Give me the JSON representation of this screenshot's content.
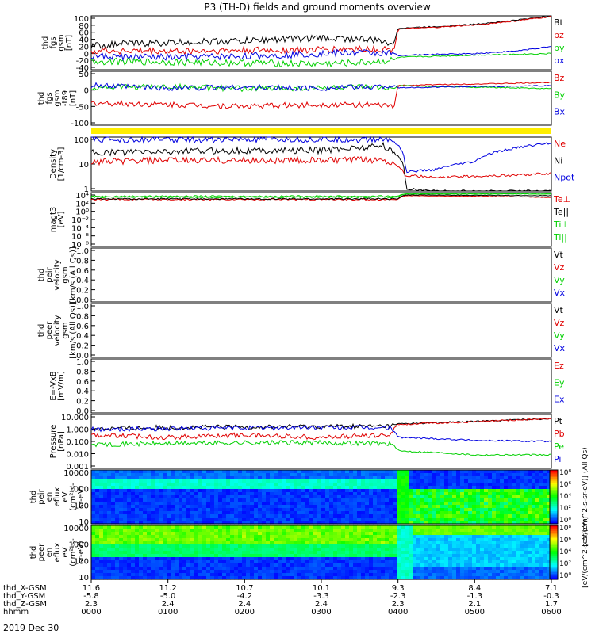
{
  "title": "P3 (TH-D) fields and ground moments overview",
  "colors": {
    "black": "#000000",
    "red": "#e00000",
    "green": "#00d000",
    "blue": "#0000e0",
    "yellow": "#ffee00"
  },
  "panels": [
    {
      "key": "fgs",
      "ylabel": [
        "thd",
        "fgs",
        "gsm",
        "[nT]"
      ],
      "yticks": [
        "100",
        "80",
        "60",
        "40",
        "20",
        "0",
        "-20",
        "-40"
      ],
      "legend": [
        {
          "text": "Bt",
          "color": "black"
        },
        {
          "text": "bz",
          "color": "red"
        },
        {
          "text": "by",
          "color": "green"
        },
        {
          "text": "bx",
          "color": "blue"
        }
      ]
    },
    {
      "key": "fgs_t89",
      "ylabel": [
        "thd",
        "fgs",
        "gsm",
        "-t89",
        "[nT]"
      ],
      "yticks": [
        "50",
        "0",
        "-50",
        "-100"
      ],
      "legend": [
        {
          "text": "Bz",
          "color": "red"
        },
        {
          "text": "By",
          "color": "green"
        },
        {
          "text": "Bx",
          "color": "blue"
        }
      ]
    },
    {
      "key": "density",
      "ylabel": [
        "Density",
        "[1/cm-3]"
      ],
      "yticks": [
        "100",
        "10",
        "1"
      ],
      "legend": [
        {
          "text": "Ne",
          "color": "red"
        },
        {
          "text": "Ni",
          "color": "black"
        },
        {
          "text": "Npot",
          "color": "blue"
        }
      ]
    },
    {
      "key": "temp",
      "ylabel": [
        "magt3",
        "[eV]"
      ],
      "yticks": [
        "10⁴",
        "10²",
        "10⁰",
        "10⁻²",
        "10⁻⁴",
        "10⁻⁶",
        "10⁻⁸"
      ],
      "legend": [
        {
          "text": "Te⊥",
          "color": "red"
        },
        {
          "text": "Te||",
          "color": "black"
        },
        {
          "text": "Ti⊥",
          "color": "green"
        },
        {
          "text": "Ti||",
          "color": "green"
        }
      ]
    },
    {
      "key": "peir_vel",
      "ylabel": [
        "thd",
        "peir",
        "velocity",
        "gsm",
        "[km/s (All Qs)]"
      ],
      "yticks": [
        "1.0",
        "0.8",
        "0.6",
        "0.4",
        "0.2",
        "0.0"
      ],
      "legend": [
        {
          "text": "Vt",
          "color": "black"
        },
        {
          "text": "Vz",
          "color": "red"
        },
        {
          "text": "Vy",
          "color": "green"
        },
        {
          "text": "Vx",
          "color": "blue"
        }
      ]
    },
    {
      "key": "peer_vel",
      "ylabel": [
        "thd",
        "peer",
        "velocity",
        "gsm",
        "[km/s (All Qs)]"
      ],
      "yticks": [
        "1.0",
        "0.8",
        "0.6",
        "0.4",
        "0.2",
        "0.0"
      ],
      "legend": [
        {
          "text": "Vt",
          "color": "black"
        },
        {
          "text": "Vz",
          "color": "red"
        },
        {
          "text": "Vy",
          "color": "green"
        },
        {
          "text": "Vx",
          "color": "blue"
        }
      ]
    },
    {
      "key": "efield",
      "ylabel": [
        "E=-VxB",
        "[mV/m]"
      ],
      "yticks": [
        "1.0",
        "0.8",
        "0.6",
        "0.4",
        "0.2",
        "0.0"
      ],
      "legend": [
        {
          "text": "Ez",
          "color": "red"
        },
        {
          "text": "Ey",
          "color": "green"
        },
        {
          "text": "Ex",
          "color": "blue"
        }
      ]
    },
    {
      "key": "pressure",
      "ylabel": [
        "Pressure",
        "[nPa]"
      ],
      "yticks": [
        "10.000",
        "1.000",
        "0.100",
        "0.010",
        "0.001"
      ],
      "legend": [
        {
          "text": "Pt",
          "color": "black"
        },
        {
          "text": "Pb",
          "color": "red"
        },
        {
          "text": "Pe",
          "color": "green"
        },
        {
          "text": "Pi",
          "color": "blue"
        }
      ]
    },
    {
      "key": "peir_spec",
      "ylabel": [
        "thd",
        "peir",
        "en",
        "eflux",
        "eV",
        "(cm²-s-",
        "sr-eV)"
      ],
      "yticks": [
        "10000",
        "1000",
        "100",
        "10"
      ],
      "colorbar": [
        "10⁸",
        "10⁶",
        "10⁴",
        "10²",
        "10⁰"
      ],
      "cbar_label": "[eV/(cm^2-s-sr-eV)] (All Qs)"
    },
    {
      "key": "peer_spec",
      "ylabel": [
        "thd",
        "peer",
        "en",
        "eflux",
        "eV",
        "(cm²-s-",
        "sr-eV)"
      ],
      "yticks": [
        "10000",
        "1000",
        "100",
        "10"
      ],
      "colorbar": [
        "10⁸",
        "10⁶",
        "10⁴",
        "10²",
        "10⁰"
      ],
      "cbar_label": "[eV/(cm^2-s-sr-eV)]"
    }
  ],
  "xaxis": {
    "rows": [
      {
        "label": "thd_X-GSM",
        "values": [
          "11.6",
          "11.2",
          "10.7",
          "10.1",
          "9.3",
          "8.4",
          "7.1"
        ]
      },
      {
        "label": "thd_Y-GSM",
        "values": [
          "-5.8",
          "-5.0",
          "-4.2",
          "-3.3",
          "-2.3",
          "-1.3",
          "-0.3"
        ]
      },
      {
        "label": "thd_Z-GSM",
        "values": [
          "2.3",
          "2.4",
          "2.4",
          "2.4",
          "2.3",
          "2.1",
          "1.7"
        ]
      },
      {
        "label": "hhmm",
        "values": [
          "0000",
          "0100",
          "0200",
          "0300",
          "0400",
          "0500",
          "0600"
        ]
      }
    ],
    "date": "2019 Dec 30"
  },
  "chart_data": {
    "type": "line",
    "title": "P3 (TH-D) fields and ground moments overview",
    "date": "2019 Dec 30",
    "x_hours": [
      0,
      1,
      2,
      3,
      4,
      5,
      6
    ],
    "x_tick_labels": [
      "0000",
      "0100",
      "0200",
      "0300",
      "0400",
      "0500",
      "0600"
    ],
    "series": [
      {
        "panel": "fgs",
        "name": "Bt",
        "color": "black",
        "t": [
          0,
          0.5,
          1,
          1.5,
          2,
          2.5,
          3,
          3.5,
          3.95,
          4.0,
          4.5,
          5,
          5.5,
          6
        ],
        "v": [
          22,
          28,
          30,
          33,
          35,
          40,
          42,
          40,
          30,
          68,
          72,
          78,
          88,
          100
        ]
      },
      {
        "panel": "fgs",
        "name": "bz",
        "color": "red",
        "t": [
          0,
          1,
          2,
          3,
          3.5,
          3.95,
          4.0,
          4.5,
          5,
          5.5,
          6
        ],
        "v": [
          10,
          8,
          10,
          12,
          15,
          12,
          66,
          70,
          76,
          86,
          98
        ]
      },
      {
        "panel": "fgs",
        "name": "by",
        "color": "green",
        "t": [
          0,
          1,
          2,
          3,
          3.5,
          3.95,
          4.0,
          4.5,
          5,
          5.5,
          6
        ],
        "v": [
          -18,
          -20,
          -22,
          -25,
          -22,
          -15,
          -8,
          -5,
          -2,
          0,
          2
        ]
      },
      {
        "panel": "fgs",
        "name": "bx",
        "color": "blue",
        "t": [
          0,
          1,
          2,
          3,
          3.5,
          3.95,
          4.0,
          4.5,
          5,
          5.5,
          6
        ],
        "v": [
          -5,
          -8,
          -5,
          2,
          5,
          2,
          -3,
          0,
          2,
          8,
          20
        ]
      },
      {
        "panel": "fgs_t89",
        "name": "Bz",
        "color": "red",
        "t": [
          0,
          1,
          2,
          3,
          3.5,
          3.95,
          4.0,
          4.5,
          5,
          5.5,
          6
        ],
        "v": [
          -50,
          -55,
          -60,
          -55,
          -55,
          -60,
          5,
          8,
          10,
          12,
          15
        ]
      },
      {
        "panel": "fgs_t89",
        "name": "By",
        "color": "green",
        "t": [
          0,
          1,
          2,
          3,
          3.5,
          3.95,
          4.0,
          4.5,
          5,
          5.5,
          6
        ],
        "v": [
          0,
          2,
          -5,
          -2,
          0,
          -5,
          5,
          2,
          0,
          -2,
          -5
        ]
      },
      {
        "panel": "fgs_t89",
        "name": "Bx",
        "color": "blue",
        "t": [
          0,
          1,
          2,
          3,
          3.5,
          3.95,
          4.0,
          4.5,
          5,
          5.5,
          6
        ],
        "v": [
          5,
          -2,
          0,
          -3,
          0,
          5,
          -2,
          0,
          2,
          3,
          5
        ]
      },
      {
        "panel": "density",
        "name": "Ne",
        "color": "red",
        "t": [
          0,
          1,
          2,
          3,
          3.8,
          3.95,
          4.1,
          4.5,
          5,
          5.5,
          6
        ],
        "v": [
          10,
          12,
          12,
          12,
          13,
          8,
          2,
          1.5,
          1.8,
          2,
          2.5
        ]
      },
      {
        "panel": "density",
        "name": "Ni",
        "color": "black",
        "t": [
          0,
          1,
          2,
          3,
          3.8,
          3.95,
          4.1,
          4.5,
          5,
          5.5,
          6
        ],
        "v": [
          30,
          35,
          40,
          40,
          70,
          30,
          0.4,
          0.3,
          0.3,
          0.3,
          0.3
        ]
      },
      {
        "panel": "density",
        "name": "Npot",
        "color": "blue",
        "t": [
          0,
          0.2,
          3.9,
          4.1,
          4.5,
          5,
          5.5,
          6
        ],
        "v": [
          150,
          150,
          150,
          3,
          4,
          10,
          50,
          100
        ]
      },
      {
        "panel": "temp",
        "name": "Te⊥",
        "color": "red",
        "t": [
          0,
          1,
          2,
          3,
          4,
          4.1,
          5,
          6
        ],
        "v": [
          300,
          300,
          300,
          300,
          300,
          2000,
          1500,
          800
        ]
      },
      {
        "panel": "temp",
        "name": "Te||",
        "color": "black",
        "t": [
          0,
          1,
          2,
          3,
          4,
          4.1,
          5,
          6
        ],
        "v": [
          400,
          400,
          400,
          400,
          400,
          3000,
          2500,
          2000
        ]
      },
      {
        "panel": "temp",
        "name": "Ti⊥",
        "color": "green",
        "t": [
          0,
          1,
          2,
          3,
          4,
          4.1,
          5,
          6
        ],
        "v": [
          1000,
          1000,
          1000,
          1000,
          1000,
          5000,
          5000,
          5000
        ]
      },
      {
        "panel": "temp",
        "name": "Ti||",
        "color": "green",
        "t": [
          0,
          1,
          2,
          3,
          4,
          4.1,
          5,
          6
        ],
        "v": [
          1500,
          1500,
          1500,
          1500,
          1500,
          5000,
          5000,
          5000
        ]
      },
      {
        "panel": "pressure",
        "name": "Pt",
        "color": "black",
        "t": [
          0,
          1,
          2,
          3,
          3.9,
          4.0,
          5,
          6
        ],
        "v": [
          0.9,
          1.1,
          1.2,
          1.3,
          1.4,
          2.0,
          3.0,
          5.0
        ]
      },
      {
        "panel": "pressure",
        "name": "Pb",
        "color": "red",
        "t": [
          0,
          1,
          2,
          3,
          3.9,
          4.0,
          5,
          6
        ],
        "v": [
          0.3,
          0.2,
          0.3,
          0.2,
          0.3,
          1.8,
          2.8,
          4.8
        ]
      },
      {
        "panel": "pressure",
        "name": "Pe",
        "color": "green",
        "t": [
          0,
          1,
          2,
          3,
          3.9,
          4.0,
          5,
          6
        ],
        "v": [
          0.06,
          0.07,
          0.08,
          0.08,
          0.07,
          0.02,
          0.01,
          0.01
        ]
      },
      {
        "panel": "pressure",
        "name": "Pi",
        "color": "blue",
        "t": [
          0,
          1,
          2,
          3,
          3.9,
          4.0,
          5,
          6
        ],
        "v": [
          0.8,
          0.9,
          1.0,
          1.1,
          1.0,
          0.2,
          0.12,
          0.1
        ]
      }
    ]
  }
}
